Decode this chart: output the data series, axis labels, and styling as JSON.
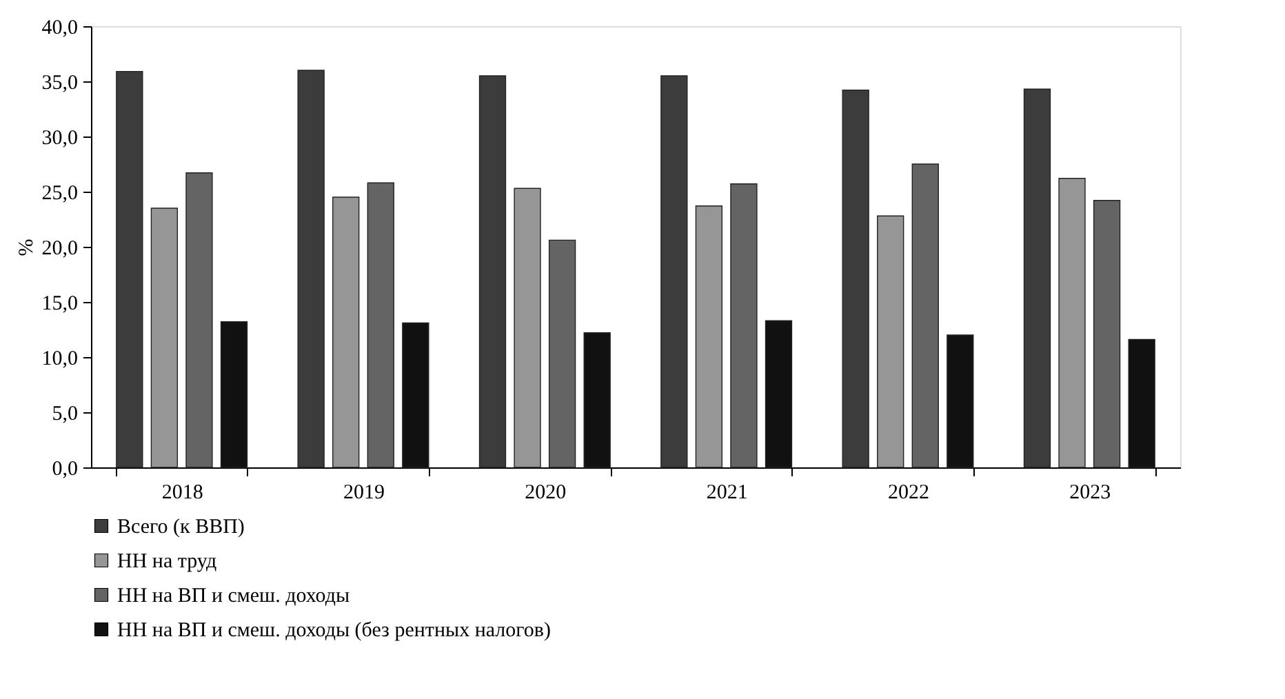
{
  "chart_data": {
    "type": "bar",
    "ylabel": "%",
    "categories": [
      "2018",
      "2019",
      "2020",
      "2021",
      "2022",
      "2023"
    ],
    "series": [
      {
        "name": "Всего (к ВВП)",
        "color": "#3c3c3c",
        "values": [
          35.9,
          36.0,
          35.5,
          35.5,
          34.2,
          34.3
        ]
      },
      {
        "name": "НН на труд",
        "color": "#969696",
        "values": [
          23.5,
          24.5,
          25.3,
          23.7,
          22.8,
          26.2
        ]
      },
      {
        "name": "НН на ВП и смеш. доходы",
        "color": "#646464",
        "values": [
          26.7,
          25.8,
          20.6,
          25.7,
          27.5,
          24.2
        ]
      },
      {
        "name": "НН на ВП и смеш. доходы (без рентных налогов)",
        "color": "#111111",
        "values": [
          13.2,
          13.1,
          12.2,
          13.3,
          12.0,
          11.6
        ]
      }
    ],
    "ylim": [
      0,
      40
    ],
    "yticks": [
      {
        "value": 0,
        "label": "0,0"
      },
      {
        "value": 5,
        "label": "5,0"
      },
      {
        "value": 10,
        "label": "10,0"
      },
      {
        "value": 15,
        "label": "15,0"
      },
      {
        "value": 20,
        "label": "20,0"
      },
      {
        "value": 25,
        "label": "25,0"
      },
      {
        "value": 30,
        "label": "30,0"
      },
      {
        "value": 35,
        "label": "35,0"
      },
      {
        "value": 40,
        "label": "40,0"
      }
    ],
    "grid": false,
    "legend": "bottom"
  }
}
